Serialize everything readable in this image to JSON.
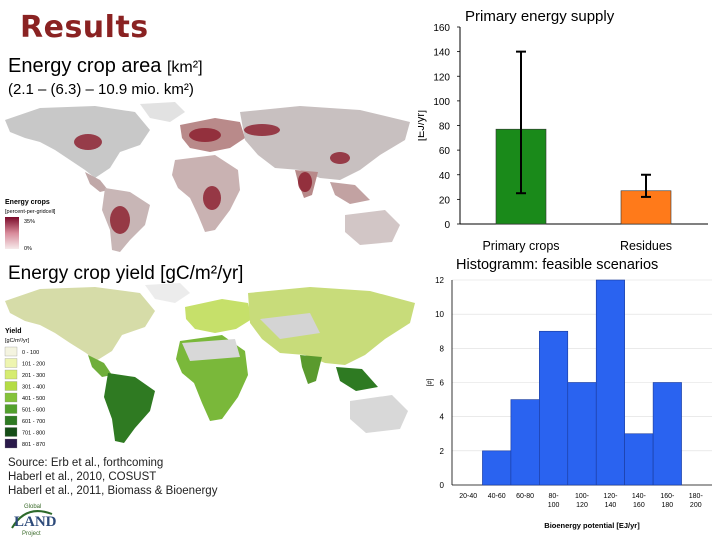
{
  "slide": {
    "title": "Results",
    "area_heading": "Energy crop area",
    "area_unit": "[km²]",
    "area_range": "(2.1 – (6.3) – 10.9 mio. km²)",
    "yield_heading": "Energy crop yield [gC/m²/yr]",
    "sources": [
      "Source: Erb et al., forthcoming",
      "Haberl et al., 2010, COSUST",
      "Haberl et al., 2011, Biomass & Bioenergy"
    ]
  },
  "map_energy_crops": {
    "legend_title": "Energy crops",
    "legend_subtitle": "[percent-per-gridcell]",
    "legend_max": "35%",
    "legend_min": "0%"
  },
  "map_yield": {
    "legend_title": "Yield",
    "legend_subtitle": "[gC/m²/yr]",
    "legend_items": [
      "0 - 100",
      "101 - 200",
      "201 - 300",
      "301 - 400",
      "401 - 500",
      "501 - 600",
      "601 - 700",
      "701 - 800",
      "801 - 870"
    ],
    "legend_colors": [
      "#f4f4e0",
      "#eef5b0",
      "#d6ec70",
      "#b4dc44",
      "#84c23a",
      "#52a02c",
      "#2e7a22",
      "#154d16",
      "#2a1a4a"
    ]
  },
  "logo": {
    "top": "Global",
    "main": "LAND",
    "bottom": "Project"
  },
  "chart_data": [
    {
      "type": "bar",
      "title": "Primary energy supply",
      "ylabel": "[EJ/yr]",
      "categories": [
        "Primary crops",
        "Residues"
      ],
      "values": [
        77,
        27
      ],
      "error_low": [
        25,
        22
      ],
      "error_high": [
        140,
        40
      ],
      "colors": [
        "#1a8a1a",
        "#ff7a1a"
      ],
      "ylim": [
        0,
        160
      ],
      "yticks": [
        "0",
        "20",
        "40",
        "60",
        "80",
        "100",
        "120",
        "140",
        "160"
      ]
    },
    {
      "type": "bar",
      "title": "Histogramm: feasible scenarios",
      "xlabel": "Bioenergy potential [EJ/yr]",
      "ylabel": "[#]",
      "categories": [
        "20-40",
        "40-60",
        "60-80",
        "80-100",
        "100-120",
        "120-140",
        "140-160",
        "160-180",
        "180-200"
      ],
      "values": [
        0,
        2,
        5,
        9,
        6,
        12,
        3,
        6,
        0
      ],
      "color": "#2a63f0",
      "ylim": [
        0,
        12
      ],
      "yticks": [
        "0",
        "2",
        "4",
        "6",
        "8",
        "10",
        "12"
      ]
    }
  ]
}
